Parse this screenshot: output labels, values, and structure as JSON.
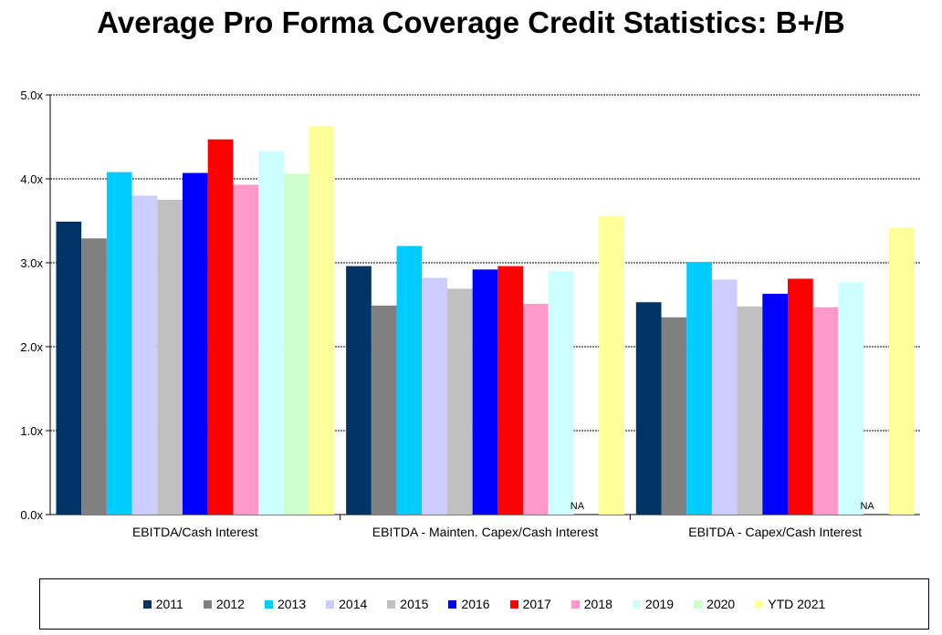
{
  "chart_data": {
    "type": "bar",
    "title": "Average Pro Forma Coverage Credit Statistics: B+/B",
    "xlabel": "",
    "ylabel": "",
    "ylim": [
      0,
      5
    ],
    "yticks": [
      "0.0x",
      "1.0x",
      "2.0x",
      "3.0x",
      "4.0x",
      "5.0x"
    ],
    "grid": true,
    "legend_position": "bottom",
    "categories": [
      "EBITDA/Cash Interest",
      "EBITDA - Mainten. Capex/Cash Interest",
      "EBITDA - Capex/Cash Interest"
    ],
    "na_label": "NA",
    "series": [
      {
        "name": "2011",
        "color": "#003366",
        "values": [
          3.49,
          2.96,
          2.53
        ]
      },
      {
        "name": "2012",
        "color": "#808080",
        "values": [
          3.29,
          2.49,
          2.35
        ]
      },
      {
        "name": "2013",
        "color": "#00CCFF",
        "values": [
          4.08,
          3.2,
          3.01
        ]
      },
      {
        "name": "2014",
        "color": "#CCCCFF",
        "values": [
          3.8,
          2.82,
          2.8
        ]
      },
      {
        "name": "2015",
        "color": "#C0C0C0",
        "values": [
          3.75,
          2.69,
          2.48
        ]
      },
      {
        "name": "2016",
        "color": "#0000FF",
        "values": [
          4.07,
          2.92,
          2.63
        ]
      },
      {
        "name": "2017",
        "color": "#FF0000",
        "values": [
          4.47,
          2.96,
          2.81
        ]
      },
      {
        "name": "2018",
        "color": "#FF99CC",
        "values": [
          3.93,
          2.51,
          2.47
        ]
      },
      {
        "name": "2019",
        "color": "#CCFFFF",
        "values": [
          4.33,
          2.9,
          2.77
        ]
      },
      {
        "name": "2020",
        "color": "#CCFFCC",
        "values": [
          4.06,
          null,
          null
        ]
      },
      {
        "name": "YTD 2021",
        "color": "#FFFF99",
        "values": [
          4.63,
          3.56,
          3.42
        ]
      }
    ]
  }
}
